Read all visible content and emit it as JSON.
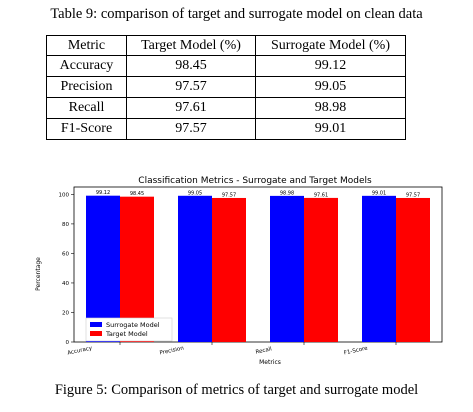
{
  "table": {
    "caption": "Table 9: comparison of target and surrogate model on clean data",
    "headers": [
      "Metric",
      "Target Model (%)",
      "Surrogate Model (%)"
    ],
    "rows": [
      [
        "Accuracy",
        "98.45",
        "99.12"
      ],
      [
        "Precision",
        "97.57",
        "99.05"
      ],
      [
        "Recall",
        "97.61",
        "98.98"
      ],
      [
        "F1-Score",
        "97.57",
        "99.01"
      ]
    ]
  },
  "figure": {
    "caption": "Figure 5: Comparison of metrics of target and surrogate model"
  },
  "colors": {
    "surrogate": "#0000ff",
    "target": "#ff0000"
  },
  "chart_data": {
    "type": "bar",
    "title": "Classification Metrics - Surrogate and Target Models",
    "xlabel": "Metrics",
    "ylabel": "Percentage",
    "categories": [
      "Accuracy",
      "Precision",
      "Recall",
      "F1-Score"
    ],
    "series": [
      {
        "name": "Surrogate Model",
        "values": [
          99.12,
          99.05,
          98.98,
          99.01
        ],
        "labels": [
          "99.12",
          "99.05",
          "98.98",
          "99.01"
        ]
      },
      {
        "name": "Target Model",
        "values": [
          98.45,
          97.57,
          97.61,
          97.57
        ],
        "labels": [
          "98.45",
          "97.57",
          "97.61",
          "97.57"
        ]
      }
    ],
    "ylim": [
      0,
      105
    ],
    "yticks": [
      0,
      20,
      40,
      60,
      80,
      100
    ],
    "legend_position": "lower-left",
    "grid": false
  }
}
